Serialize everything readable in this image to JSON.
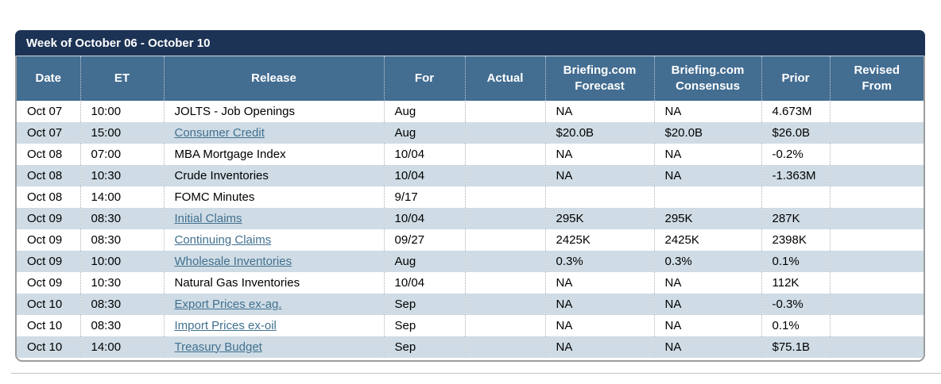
{
  "colors": {
    "title_bg": "#1c3355",
    "header_bg": "#436d91",
    "alt_row_bg": "#cfdce5",
    "link_color": "#41708f",
    "border_gray": "#9c9c9c"
  },
  "calendar": {
    "title": "Week of October 06 - October 10",
    "columns": [
      {
        "label": "Date"
      },
      {
        "label": "ET"
      },
      {
        "label": "Release"
      },
      {
        "label": "For"
      },
      {
        "label": "Actual"
      },
      {
        "label": "Briefing.com\nForecast"
      },
      {
        "label": "Briefing.com\nConsensus"
      },
      {
        "label": "Prior"
      },
      {
        "label": "Revised\nFrom"
      }
    ],
    "rows": [
      {
        "date": "Oct 07",
        "et": "10:00",
        "release": "JOLTS - Job Openings",
        "is_link": false,
        "for": "Aug",
        "actual": "",
        "forecast": "NA",
        "consensus": "NA",
        "prior": "4.673M",
        "revised_from": ""
      },
      {
        "date": "Oct 07",
        "et": "15:00",
        "release": "Consumer Credit",
        "is_link": true,
        "for": "Aug",
        "actual": "",
        "forecast": "$20.0B",
        "consensus": "$20.0B",
        "prior": "$26.0B",
        "revised_from": ""
      },
      {
        "date": "Oct 08",
        "et": "07:00",
        "release": "MBA Mortgage Index",
        "is_link": false,
        "for": "10/04",
        "actual": "",
        "forecast": "NA",
        "consensus": "NA",
        "prior": "-0.2%",
        "revised_from": ""
      },
      {
        "date": "Oct 08",
        "et": "10:30",
        "release": "Crude Inventories",
        "is_link": false,
        "for": "10/04",
        "actual": "",
        "forecast": "NA",
        "consensus": "NA",
        "prior": "-1.363M",
        "revised_from": ""
      },
      {
        "date": "Oct 08",
        "et": "14:00",
        "release": "FOMC Minutes",
        "is_link": false,
        "for": "9/17",
        "actual": "",
        "forecast": "",
        "consensus": "",
        "prior": "",
        "revised_from": ""
      },
      {
        "date": "Oct 09",
        "et": "08:30",
        "release": "Initial Claims",
        "is_link": true,
        "for": "10/04",
        "actual": "",
        "forecast": "295K",
        "consensus": "295K",
        "prior": "287K",
        "revised_from": ""
      },
      {
        "date": "Oct 09",
        "et": "08:30",
        "release": "Continuing Claims",
        "is_link": true,
        "for": "09/27",
        "actual": "",
        "forecast": "2425K",
        "consensus": "2425K",
        "prior": "2398K",
        "revised_from": ""
      },
      {
        "date": "Oct 09",
        "et": "10:00",
        "release": "Wholesale Inventories",
        "is_link": true,
        "for": "Aug",
        "actual": "",
        "forecast": "0.3%",
        "consensus": "0.3%",
        "prior": "0.1%",
        "revised_from": ""
      },
      {
        "date": "Oct 09",
        "et": "10:30",
        "release": "Natural Gas Inventories",
        "is_link": false,
        "for": "10/04",
        "actual": "",
        "forecast": "NA",
        "consensus": "NA",
        "prior": "112K",
        "revised_from": ""
      },
      {
        "date": "Oct 10",
        "et": "08:30",
        "release": "Export Prices ex-ag.",
        "is_link": true,
        "for": "Sep",
        "actual": "",
        "forecast": "NA",
        "consensus": "NA",
        "prior": "-0.3%",
        "revised_from": ""
      },
      {
        "date": "Oct 10",
        "et": "08:30",
        "release": "Import Prices ex-oil",
        "is_link": true,
        "for": "Sep",
        "actual": "",
        "forecast": "NA",
        "consensus": "NA",
        "prior": "0.1%",
        "revised_from": ""
      },
      {
        "date": "Oct 10",
        "et": "14:00",
        "release": "Treasury Budget",
        "is_link": true,
        "for": "Sep",
        "actual": "",
        "forecast": "NA",
        "consensus": "NA",
        "prior": "$75.1B",
        "revised_from": ""
      }
    ]
  }
}
